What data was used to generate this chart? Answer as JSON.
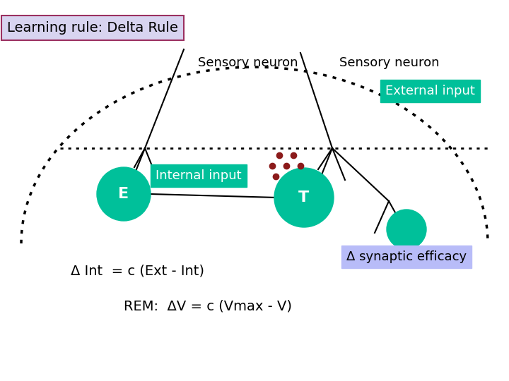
{
  "title": "Learning rule: Delta Rule",
  "title_bg": "#d8d4f0",
  "title_border": "#9b3060",
  "bg_color": "#ffffff",
  "teal_color": "#00c09a",
  "label_ext_bg": "#00c09a",
  "label_int_bg": "#00c09a",
  "label_syn_bg": "#b8bcf8",
  "text_white": "#ffffff",
  "text_black": "#000000",
  "dot_color": "#8b1a1a",
  "formula1": "Δ Int  = c (Ext - Int)",
  "formula2": "REM:  ΔV = c (Vmax - V)",
  "label_sensory1": "Sensory neuron",
  "label_sensory2": "Sensory neuron",
  "label_external": "External input",
  "label_internal": "Internal input",
  "label_synaptic": "Δ synaptic efficacy",
  "label_E": "E",
  "label_T": "T"
}
